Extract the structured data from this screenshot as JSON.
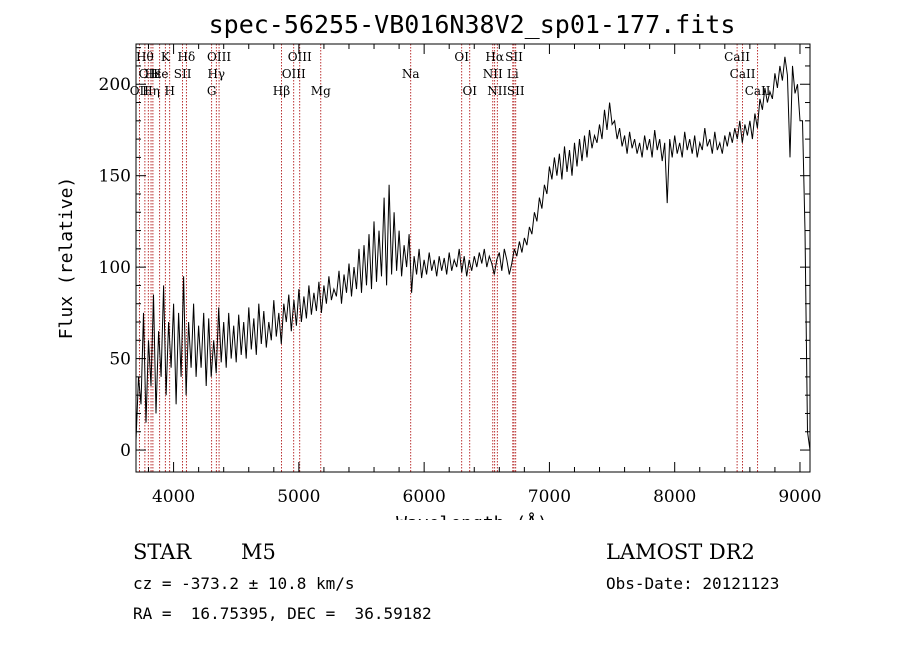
{
  "chart_data": {
    "type": "line",
    "title": "spec-56255-VB016N38V2_sp01-177.fits",
    "xlabel": "Wavelength (Å)",
    "ylabel": "Flux (relative)",
    "xlim": [
      3700,
      9080
    ],
    "ylim": [
      -12,
      222
    ],
    "xticks": [
      4000,
      5000,
      6000,
      7000,
      8000,
      9000
    ],
    "yticks": [
      0,
      50,
      100,
      150,
      200
    ],
    "grid": false,
    "series": [
      {
        "points": [
          [
            3700,
            5
          ],
          [
            3720,
            40
          ],
          [
            3740,
            25
          ],
          [
            3760,
            75
          ],
          [
            3780,
            15
          ],
          [
            3800,
            60
          ],
          [
            3820,
            35
          ],
          [
            3840,
            85
          ],
          [
            3860,
            20
          ],
          [
            3880,
            65
          ],
          [
            3900,
            40
          ],
          [
            3920,
            90
          ],
          [
            3940,
            30
          ],
          [
            3960,
            70
          ],
          [
            3980,
            45
          ],
          [
            4000,
            80
          ],
          [
            4020,
            25
          ],
          [
            4040,
            75
          ],
          [
            4060,
            40
          ],
          [
            4080,
            95
          ],
          [
            4100,
            30
          ],
          [
            4120,
            70
          ],
          [
            4140,
            45
          ],
          [
            4160,
            80
          ],
          [
            4180,
            40
          ],
          [
            4200,
            68
          ],
          [
            4220,
            45
          ],
          [
            4240,
            75
          ],
          [
            4260,
            35
          ],
          [
            4280,
            72
          ],
          [
            4300,
            40
          ],
          [
            4320,
            60
          ],
          [
            4340,
            42
          ],
          [
            4360,
            78
          ],
          [
            4380,
            48
          ],
          [
            4400,
            70
          ],
          [
            4420,
            45
          ],
          [
            4440,
            75
          ],
          [
            4460,
            50
          ],
          [
            4480,
            68
          ],
          [
            4500,
            48
          ],
          [
            4520,
            74
          ],
          [
            4540,
            52
          ],
          [
            4560,
            70
          ],
          [
            4580,
            50
          ],
          [
            4600,
            78
          ],
          [
            4620,
            55
          ],
          [
            4640,
            72
          ],
          [
            4660,
            52
          ],
          [
            4680,
            80
          ],
          [
            4700,
            58
          ],
          [
            4720,
            76
          ],
          [
            4740,
            56
          ],
          [
            4760,
            70
          ],
          [
            4780,
            60
          ],
          [
            4800,
            82
          ],
          [
            4820,
            62
          ],
          [
            4840,
            75
          ],
          [
            4860,
            58
          ],
          [
            4880,
            80
          ],
          [
            4900,
            70
          ],
          [
            4920,
            85
          ],
          [
            4940,
            65
          ],
          [
            4960,
            82
          ],
          [
            4980,
            68
          ],
          [
            5000,
            88
          ],
          [
            5020,
            70
          ],
          [
            5040,
            84
          ],
          [
            5060,
            72
          ],
          [
            5080,
            90
          ],
          [
            5100,
            74
          ],
          [
            5120,
            86
          ],
          [
            5140,
            76
          ],
          [
            5160,
            92
          ],
          [
            5180,
            75
          ],
          [
            5200,
            90
          ],
          [
            5220,
            80
          ],
          [
            5240,
            95
          ],
          [
            5260,
            82
          ],
          [
            5280,
            88
          ],
          [
            5300,
            84
          ],
          [
            5320,
            98
          ],
          [
            5340,
            80
          ],
          [
            5360,
            96
          ],
          [
            5380,
            86
          ],
          [
            5400,
            102
          ],
          [
            5420,
            84
          ],
          [
            5440,
            100
          ],
          [
            5460,
            88
          ],
          [
            5480,
            110
          ],
          [
            5500,
            86
          ],
          [
            5520,
            112
          ],
          [
            5540,
            90
          ],
          [
            5560,
            118
          ],
          [
            5580,
            88
          ],
          [
            5600,
            125
          ],
          [
            5620,
            92
          ],
          [
            5640,
            120
          ],
          [
            5660,
            95
          ],
          [
            5680,
            138
          ],
          [
            5700,
            90
          ],
          [
            5720,
            145
          ],
          [
            5740,
            96
          ],
          [
            5760,
            130
          ],
          [
            5780,
            98
          ],
          [
            5800,
            120
          ],
          [
            5820,
            95
          ],
          [
            5840,
            112
          ],
          [
            5860,
            100
          ],
          [
            5880,
            118
          ],
          [
            5900,
            86
          ],
          [
            5920,
            106
          ],
          [
            5940,
            96
          ],
          [
            5960,
            110
          ],
          [
            5980,
            94
          ],
          [
            6000,
            104
          ],
          [
            6020,
            96
          ],
          [
            6040,
            108
          ],
          [
            6060,
            98
          ],
          [
            6080,
            104
          ],
          [
            6100,
            95
          ],
          [
            6120,
            106
          ],
          [
            6140,
            98
          ],
          [
            6160,
            105
          ],
          [
            6180,
            96
          ],
          [
            6200,
            108
          ],
          [
            6220,
            98
          ],
          [
            6240,
            104
          ],
          [
            6260,
            100
          ],
          [
            6280,
            110
          ],
          [
            6300,
            97
          ],
          [
            6320,
            106
          ],
          [
            6340,
            95
          ],
          [
            6360,
            104
          ],
          [
            6380,
            98
          ],
          [
            6400,
            106
          ],
          [
            6420,
            100
          ],
          [
            6440,
            108
          ],
          [
            6460,
            102
          ],
          [
            6480,
            110
          ],
          [
            6500,
            100
          ],
          [
            6520,
            106
          ],
          [
            6540,
            102
          ],
          [
            6560,
            96
          ],
          [
            6580,
            104
          ],
          [
            6600,
            108
          ],
          [
            6620,
            98
          ],
          [
            6640,
            110
          ],
          [
            6660,
            104
          ],
          [
            6680,
            96
          ],
          [
            6700,
            102
          ],
          [
            6720,
            110
          ],
          [
            6740,
            106
          ],
          [
            6760,
            114
          ],
          [
            6780,
            108
          ],
          [
            6800,
            116
          ],
          [
            6820,
            112
          ],
          [
            6840,
            122
          ],
          [
            6860,
            118
          ],
          [
            6880,
            130
          ],
          [
            6900,
            125
          ],
          [
            6920,
            138
          ],
          [
            6940,
            132
          ],
          [
            6960,
            145
          ],
          [
            6980,
            140
          ],
          [
            7000,
            155
          ],
          [
            7020,
            148
          ],
          [
            7040,
            160
          ],
          [
            7060,
            150
          ],
          [
            7080,
            162
          ],
          [
            7100,
            148
          ],
          [
            7120,
            166
          ],
          [
            7140,
            152
          ],
          [
            7160,
            164
          ],
          [
            7180,
            150
          ],
          [
            7200,
            168
          ],
          [
            7220,
            155
          ],
          [
            7240,
            170
          ],
          [
            7260,
            158
          ],
          [
            7280,
            172
          ],
          [
            7300,
            160
          ],
          [
            7320,
            175
          ],
          [
            7340,
            165
          ],
          [
            7360,
            172
          ],
          [
            7380,
            168
          ],
          [
            7400,
            178
          ],
          [
            7420,
            170
          ],
          [
            7440,
            186
          ],
          [
            7460,
            175
          ],
          [
            7480,
            190
          ],
          [
            7500,
            178
          ],
          [
            7520,
            180
          ],
          [
            7540,
            170
          ],
          [
            7560,
            176
          ],
          [
            7580,
            166
          ],
          [
            7600,
            172
          ],
          [
            7620,
            162
          ],
          [
            7640,
            174
          ],
          [
            7660,
            165
          ],
          [
            7680,
            170
          ],
          [
            7700,
            162
          ],
          [
            7720,
            168
          ],
          [
            7740,
            160
          ],
          [
            7760,
            172
          ],
          [
            7780,
            164
          ],
          [
            7800,
            170
          ],
          [
            7820,
            160
          ],
          [
            7840,
            175
          ],
          [
            7860,
            164
          ],
          [
            7880,
            170
          ],
          [
            7900,
            158
          ],
          [
            7920,
            168
          ],
          [
            7940,
            135
          ],
          [
            7960,
            170
          ],
          [
            7980,
            160
          ],
          [
            8000,
            172
          ],
          [
            8020,
            162
          ],
          [
            8040,
            168
          ],
          [
            8060,
            160
          ],
          [
            8080,
            174
          ],
          [
            8100,
            164
          ],
          [
            8120,
            170
          ],
          [
            8140,
            162
          ],
          [
            8160,
            172
          ],
          [
            8180,
            160
          ],
          [
            8200,
            168
          ],
          [
            8220,
            164
          ],
          [
            8240,
            176
          ],
          [
            8260,
            166
          ],
          [
            8280,
            170
          ],
          [
            8300,
            162
          ],
          [
            8320,
            174
          ],
          [
            8340,
            164
          ],
          [
            8360,
            168
          ],
          [
            8380,
            162
          ],
          [
            8400,
            172
          ],
          [
            8420,
            166
          ],
          [
            8440,
            174
          ],
          [
            8460,
            168
          ],
          [
            8480,
            176
          ],
          [
            8500,
            170
          ],
          [
            8520,
            180
          ],
          [
            8540,
            168
          ],
          [
            8560,
            178
          ],
          [
            8580,
            172
          ],
          [
            8600,
            180
          ],
          [
            8620,
            170
          ],
          [
            8640,
            184
          ],
          [
            8660,
            176
          ],
          [
            8680,
            192
          ],
          [
            8700,
            186
          ],
          [
            8720,
            198
          ],
          [
            8740,
            190
          ],
          [
            8760,
            196
          ],
          [
            8780,
            192
          ],
          [
            8800,
            206
          ],
          [
            8820,
            198
          ],
          [
            8840,
            210
          ],
          [
            8860,
            202
          ],
          [
            8880,
            215
          ],
          [
            8900,
            205
          ],
          [
            8920,
            160
          ],
          [
            8940,
            210
          ],
          [
            8960,
            195
          ],
          [
            8980,
            200
          ],
          [
            9000,
            180
          ],
          [
            9020,
            180
          ],
          [
            9040,
            120
          ],
          [
            9060,
            10
          ],
          [
            9080,
            0
          ]
        ]
      }
    ],
    "lines": [
      {
        "wl": 3771,
        "label": "Hθ",
        "row": 0
      },
      {
        "wl": 3798,
        "label": "OII",
        "row": 1
      },
      {
        "wl": 3727,
        "label": "OII",
        "row": 2
      },
      {
        "wl": 3835,
        "label": "Hε",
        "row": 1
      },
      {
        "wl": 3820,
        "label": "Hη",
        "row": 2
      },
      {
        "wl": 3889,
        "label": "He",
        "row": 1
      },
      {
        "wl": 3934,
        "label": "K",
        "row": 0
      },
      {
        "wl": 3969,
        "label": "H",
        "row": 2
      },
      {
        "wl": 4072,
        "label": "SII",
        "row": 1
      },
      {
        "wl": 4102,
        "label": "Hδ",
        "row": 0
      },
      {
        "wl": 4304,
        "label": "G",
        "row": 2
      },
      {
        "wl": 4341,
        "label": "Hγ",
        "row": 1
      },
      {
        "wl": 4363,
        "label": "OIII",
        "row": 0
      },
      {
        "wl": 4861,
        "label": "Hβ",
        "row": 2
      },
      {
        "wl": 4959,
        "label": "OIII",
        "row": 1
      },
      {
        "wl": 5007,
        "label": "OIII",
        "row": 0
      },
      {
        "wl": 5175,
        "label": "Mg",
        "row": 2
      },
      {
        "wl": 5893,
        "label": "Na",
        "row": 1
      },
      {
        "wl": 6300,
        "label": "OI",
        "row": 0
      },
      {
        "wl": 6364,
        "label": "OI",
        "row": 2
      },
      {
        "wl": 6548,
        "label": "NII",
        "row": 1
      },
      {
        "wl": 6563,
        "label": "Hα",
        "row": 0
      },
      {
        "wl": 6584,
        "label": "NII",
        "row": 2
      },
      {
        "wl": 6708,
        "label": "Li",
        "row": 1
      },
      {
        "wl": 6717,
        "label": "SII",
        "row": 0
      },
      {
        "wl": 6731,
        "label": "SII",
        "row": 2
      },
      {
        "wl": 8498,
        "label": "CaII",
        "row": 0
      },
      {
        "wl": 8542,
        "label": "CaII",
        "row": 1
      },
      {
        "wl": 8662,
        "label": "CaII",
        "row": 2
      }
    ]
  },
  "info": {
    "star_type": "STAR",
    "subclass": "M5",
    "survey": "LAMOST DR2",
    "cz": "cz = -373.2 ± 10.8 km/s",
    "obs_date": "Obs-Date: 20121123",
    "coords": "RA =  16.75395, DEC =  36.59182"
  },
  "colors": {
    "spectrum": "#000000",
    "line_marker": "#aa0000",
    "background": "#ffffff"
  }
}
